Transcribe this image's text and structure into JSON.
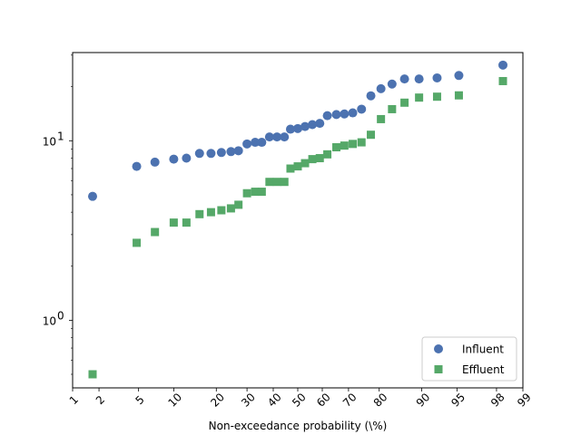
{
  "chart_data": {
    "type": "scatter",
    "xlabel": "Non-exceedance probability (\\%)",
    "ylabel": "",
    "x_scale": "normal-probability",
    "y_scale": "log",
    "xlim": [
      1,
      99
    ],
    "ylim": [
      0.42,
      31
    ],
    "x_ticks": [
      1,
      2,
      5,
      10,
      20,
      30,
      40,
      50,
      60,
      70,
      80,
      90,
      95,
      98,
      99
    ],
    "x_tick_labels": [
      "1",
      "2",
      "5",
      "10",
      "20",
      "30",
      "40",
      "50",
      "60",
      "70",
      "80",
      "90",
      "95",
      "98",
      "99"
    ],
    "y_major_ticks": [
      1,
      10
    ],
    "y_tick_labels": [
      "10^0",
      "10^1"
    ],
    "y_tick_display": [
      {
        "base": "10",
        "exp": "0"
      },
      {
        "base": "10",
        "exp": "1"
      }
    ],
    "grid": false,
    "legend_position": "lower right",
    "series": [
      {
        "name": "Influent",
        "marker": "circle",
        "color": "#4c72b0",
        "x": [
          1.7,
          4.8,
          7.0,
          10.0,
          12.5,
          15.5,
          18.5,
          21.5,
          24.5,
          27.0,
          30.0,
          33.0,
          35.5,
          38.5,
          41.5,
          44.5,
          47.0,
          50.0,
          53.0,
          56.0,
          59.0,
          62.0,
          65.5,
          68.5,
          71.5,
          74.5,
          77.5,
          80.5,
          83.5,
          86.5,
          89.5,
          92.5,
          95.2,
          98.3
        ],
        "y": [
          4.9,
          7.2,
          7.6,
          7.9,
          8.0,
          8.5,
          8.5,
          8.6,
          8.7,
          8.8,
          9.6,
          9.8,
          9.8,
          10.5,
          10.5,
          10.5,
          11.6,
          11.7,
          12.0,
          12.3,
          12.5,
          13.8,
          14.0,
          14.1,
          14.3,
          15.0,
          17.8,
          19.5,
          20.7,
          22.1,
          22.1,
          22.4,
          23.1,
          26.4
        ]
      },
      {
        "name": "Effluent",
        "marker": "square",
        "color": "#55a868",
        "x": [
          1.7,
          4.8,
          7.0,
          10.0,
          12.5,
          15.5,
          18.5,
          21.5,
          24.5,
          27.0,
          30.0,
          33.0,
          35.5,
          38.5,
          41.5,
          44.5,
          47.0,
          50.0,
          53.0,
          56.0,
          59.0,
          62.0,
          65.5,
          68.5,
          71.5,
          74.5,
          77.5,
          80.5,
          83.5,
          86.5,
          89.5,
          92.5,
          95.2,
          98.3
        ],
        "y": [
          0.5,
          2.7,
          3.1,
          3.5,
          3.5,
          3.9,
          4.0,
          4.1,
          4.2,
          4.4,
          5.1,
          5.2,
          5.2,
          5.9,
          5.9,
          5.9,
          7.0,
          7.2,
          7.5,
          7.9,
          8.0,
          8.4,
          9.2,
          9.4,
          9.6,
          9.8,
          10.8,
          13.2,
          15.0,
          16.3,
          17.4,
          17.6,
          17.9,
          21.5
        ]
      }
    ]
  }
}
